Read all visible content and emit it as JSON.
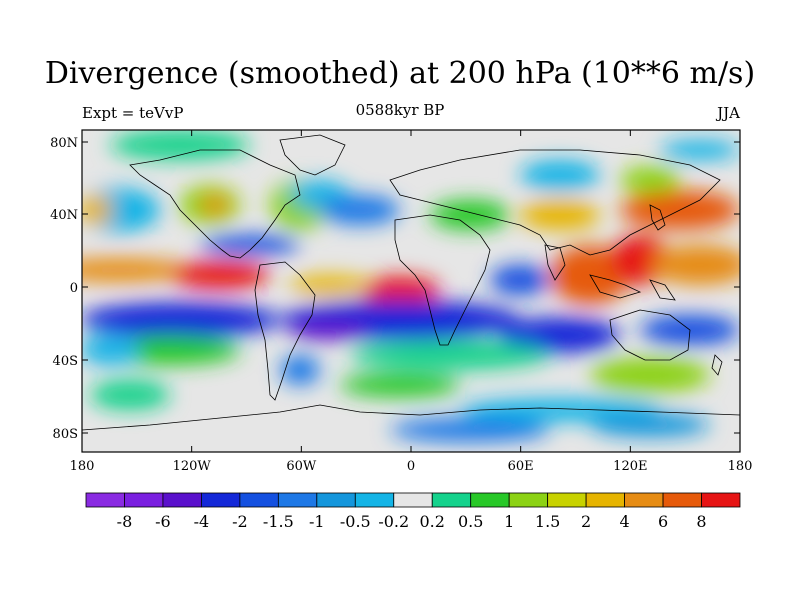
{
  "title": "Divergence (smoothed) at 200 hPa (10**6 m/s)",
  "subtitle_left": "Expt = teVvP",
  "subtitle_center": "0588kyr BP",
  "subtitle_right": "JJA",
  "map": {
    "y_ticks": [
      "80N",
      "40N",
      "0",
      "40S",
      "80S"
    ],
    "x_ticks": [
      "180",
      "120W",
      "60W",
      "0",
      "60E",
      "120E",
      "180"
    ],
    "background_color": "#e6e6e6",
    "coastline_color": "#000000"
  },
  "colorbar": {
    "colors": [
      "#8a2be2",
      "#7a1fe0",
      "#5a10cc",
      "#1428d8",
      "#1450e0",
      "#1e78e6",
      "#1496dc",
      "#14b4e6",
      "#e6e6e6",
      "#14d28c",
      "#28c828",
      "#8cd214",
      "#c8d200",
      "#e6b400",
      "#e68c14",
      "#e65a0a",
      "#e61414"
    ],
    "labels": [
      "-8",
      "-6",
      "-4",
      "-2",
      "-1.5",
      "-1",
      "-0.5",
      "-0.2",
      "0.2",
      "0.5",
      "1",
      "1.5",
      "2",
      "4",
      "6",
      "8"
    ]
  }
}
